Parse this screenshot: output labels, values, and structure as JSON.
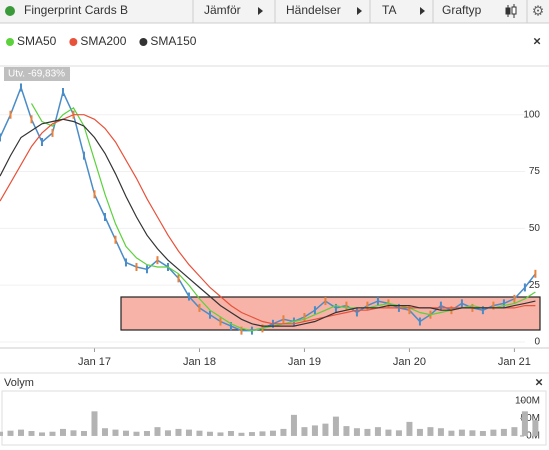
{
  "toolbar": {
    "title": "Fingerprint Cards B",
    "items": [
      "Jämför",
      "Händelser",
      "TA",
      "Graftyp"
    ]
  },
  "change_label": "Utv. -69,83%",
  "volume_title": "Volym",
  "chart_data": [
    {
      "type": "line",
      "x": [
        2016.1,
        2016.2,
        2016.3,
        2016.4,
        2016.5,
        2016.6,
        2016.7,
        2016.8,
        2016.9,
        2017.0,
        2017.1,
        2017.2,
        2017.3,
        2017.4,
        2017.5,
        2017.6,
        2017.7,
        2017.8,
        2017.9,
        2018.0,
        2018.1,
        2018.2,
        2018.3,
        2018.4,
        2018.5,
        2018.6,
        2018.7,
        2018.8,
        2018.9,
        2019.0,
        2019.1,
        2019.2,
        2019.3,
        2019.4,
        2019.5,
        2019.6,
        2019.7,
        2019.8,
        2019.9,
        2020.0,
        2020.1,
        2020.2,
        2020.3,
        2020.4,
        2020.5,
        2020.6,
        2020.7,
        2020.8,
        2020.9,
        2021.0,
        2021.1,
        2021.2
      ],
      "price_color": "#4a8cc8",
      "values": [
        90,
        100,
        112,
        98,
        88,
        92,
        110,
        100,
        82,
        65,
        55,
        45,
        35,
        33,
        32,
        36,
        33,
        28,
        20,
        15,
        12,
        9,
        7,
        5,
        5,
        6,
        8,
        10,
        9,
        11,
        14,
        18,
        15,
        16,
        13,
        16,
        18,
        17,
        15,
        14,
        9,
        12,
        16,
        14,
        17,
        15,
        14,
        16,
        17,
        19,
        24,
        30
      ],
      "series": [
        {
          "name": "SMA50",
          "color": "#5bd13b",
          "values": [
            null,
            null,
            null,
            105,
            97,
            95,
            100,
            103,
            95,
            80,
            65,
            52,
            42,
            37,
            34,
            33,
            33,
            30,
            25,
            19,
            14,
            11,
            8,
            6,
            5,
            6,
            7,
            8,
            9,
            10,
            12,
            14,
            16,
            15,
            15,
            15,
            16,
            17,
            16,
            15,
            13,
            12,
            13,
            14,
            15,
            16,
            15,
            15,
            16,
            17,
            19,
            22
          ]
        },
        {
          "name": "SMA200",
          "color": "#e8513a",
          "values": [
            62,
            70,
            78,
            86,
            92,
            96,
            98,
            100,
            100,
            98,
            94,
            88,
            80,
            72,
            63,
            55,
            47,
            40,
            34,
            29,
            24,
            20,
            16,
            13,
            11,
            9,
            8,
            8,
            8,
            9,
            10,
            11,
            12,
            13,
            14,
            14,
            15,
            15,
            15,
            15,
            15,
            15,
            15,
            15,
            15,
            15,
            15,
            15,
            15,
            15,
            16,
            16
          ]
        },
        {
          "name": "SMA150",
          "color": "#333333",
          "values": [
            73,
            82,
            90,
            93,
            96,
            97,
            98,
            97,
            95,
            90,
            83,
            74,
            64,
            55,
            47,
            41,
            36,
            32,
            28,
            24,
            20,
            16,
            13,
            10,
            8,
            7,
            7,
            7,
            7,
            8,
            9,
            11,
            13,
            14,
            15,
            15,
            15,
            16,
            16,
            16,
            15,
            15,
            14,
            14,
            15,
            15,
            15,
            15,
            15,
            16,
            17,
            18
          ]
        }
      ],
      "xlim": [
        2016.1,
        2021.32
      ],
      "xticks": [
        {
          "value": 2017,
          "label": "Jan 17"
        },
        {
          "value": 2018,
          "label": "Jan 18"
        },
        {
          "value": 2019,
          "label": "Jan 19"
        },
        {
          "value": 2020,
          "label": "Jan 20"
        },
        {
          "value": 2021,
          "label": "Jan 21"
        }
      ],
      "ylim": [
        -2.2,
        121
      ],
      "yticks": [
        0,
        25,
        50,
        75,
        100
      ],
      "grid": true
    },
    {
      "type": "bar",
      "x": [
        2016.1,
        2016.2,
        2016.3,
        2016.4,
        2016.5,
        2016.6,
        2016.7,
        2016.8,
        2016.9,
        2017.0,
        2017.1,
        2017.2,
        2017.3,
        2017.4,
        2017.5,
        2017.6,
        2017.7,
        2017.8,
        2017.9,
        2018.0,
        2018.1,
        2018.2,
        2018.3,
        2018.4,
        2018.5,
        2018.6,
        2018.7,
        2018.8,
        2018.9,
        2019.0,
        2019.1,
        2019.2,
        2019.3,
        2019.4,
        2019.5,
        2019.6,
        2019.7,
        2019.8,
        2019.9,
        2020.0,
        2020.1,
        2020.2,
        2020.3,
        2020.4,
        2020.5,
        2020.6,
        2020.7,
        2020.8,
        2020.9,
        2021.0,
        2021.1,
        2021.2
      ],
      "color": "#b3b3b3",
      "values": [
        12000000,
        15000000,
        18000000,
        14000000,
        10000000,
        12000000,
        20000000,
        16000000,
        14000000,
        70000000,
        22000000,
        18000000,
        15000000,
        12000000,
        14000000,
        25000000,
        16000000,
        20000000,
        18000000,
        15000000,
        12000000,
        10000000,
        14000000,
        9000000,
        11000000,
        13000000,
        15000000,
        20000000,
        60000000,
        25000000,
        30000000,
        35000000,
        55000000,
        28000000,
        22000000,
        20000000,
        25000000,
        18000000,
        16000000,
        40000000,
        20000000,
        25000000,
        22000000,
        15000000,
        18000000,
        16000000,
        14000000,
        18000000,
        20000000,
        25000000,
        70000000,
        45000000
      ],
      "xlim": [
        2016.1,
        2021.32
      ],
      "ylim": [
        -3000000,
        125000000
      ],
      "yticks": [
        {
          "value": 0,
          "label": "0M"
        },
        {
          "value": 50000000,
          "label": "50M"
        },
        {
          "value": 100000000,
          "label": "100M"
        }
      ]
    }
  ]
}
